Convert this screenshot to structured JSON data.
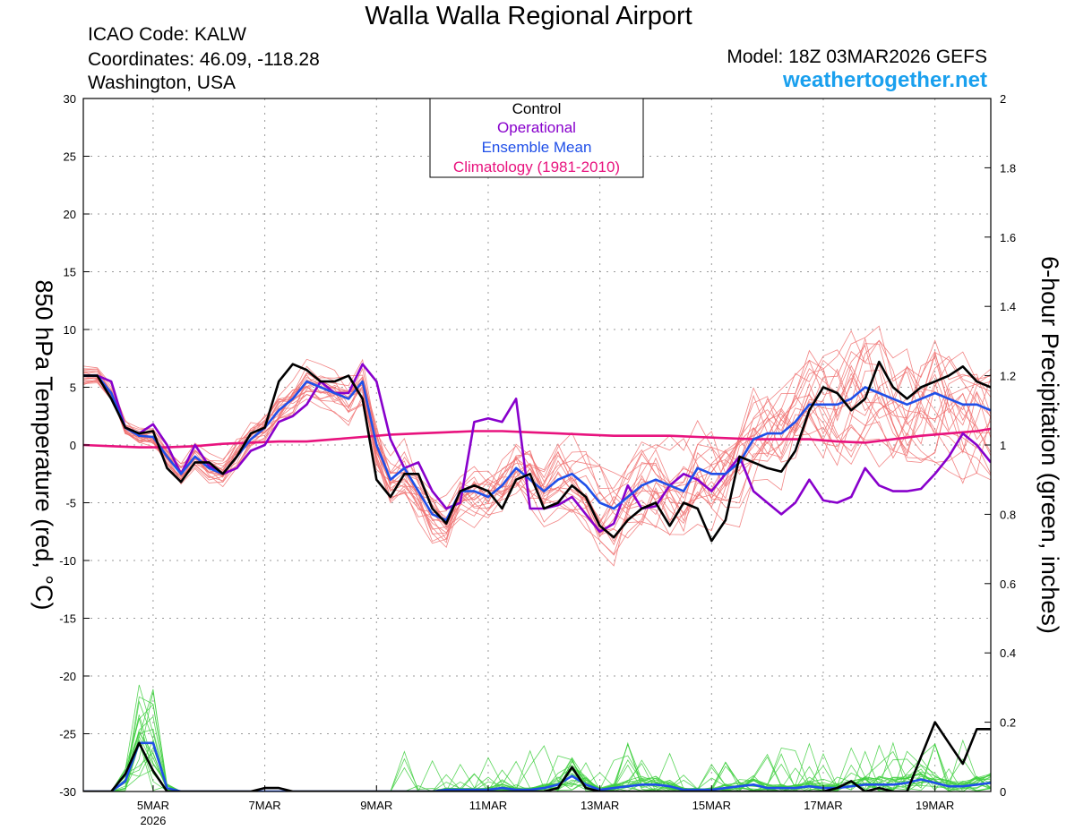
{
  "header": {
    "title": "Walla Walla Regional Airport",
    "icao": "ICAO Code: KALW",
    "coordinates": "Coordinates: 46.09, -118.28",
    "region": "Washington, USA",
    "model": "Model: 18Z 03MAR2026 GEFS",
    "website": "weathertogether.net"
  },
  "colors": {
    "control": "#000000",
    "operational": "#8800cc",
    "ensemble_mean": "#1f4fe8",
    "climatology": "#e8137e",
    "member_temp": "#f07070",
    "member_precip": "#3ecf3e",
    "website": "#1aa0ee"
  },
  "chart_data": {
    "type": "line",
    "x_unit": "days since 18Z 03MAR2026",
    "xlim": [
      0,
      16.25
    ],
    "x_ticks": [
      {
        "x": 1.25,
        "label": "5MAR",
        "sub": "2026"
      },
      {
        "x": 3.25,
        "label": "7MAR"
      },
      {
        "x": 5.25,
        "label": "9MAR"
      },
      {
        "x": 7.25,
        "label": "11MAR"
      },
      {
        "x": 9.25,
        "label": "13MAR"
      },
      {
        "x": 11.25,
        "label": "15MAR"
      },
      {
        "x": 13.25,
        "label": "17MAR"
      },
      {
        "x": 15.25,
        "label": "19MAR"
      }
    ],
    "y_left": {
      "label": "850 hPa Temperature (red, °C)",
      "lim": [
        -30,
        30
      ],
      "ticks": [
        -30,
        -25,
        -20,
        -15,
        -10,
        -5,
        0,
        5,
        10,
        15,
        20,
        25,
        30
      ]
    },
    "y_right": {
      "label": "6-hour Precipitation (green, inches)",
      "lim": [
        0,
        2
      ],
      "ticks": [
        "0",
        "0.2",
        "0.4",
        "0.6",
        "0.8",
        "1",
        "1.2",
        "1.4",
        "1.6",
        "1.8",
        "2"
      ]
    },
    "grid": true,
    "legend": {
      "position": "top-center",
      "entries": [
        "Control",
        "Operational",
        "Ensemble Mean",
        "Climatology (1981-2010)"
      ]
    },
    "series": [
      {
        "name": "Control",
        "axis": "left",
        "key": "control",
        "width": 2.6,
        "x": [
          0,
          0.25,
          0.5,
          0.75,
          1,
          1.25,
          1.5,
          1.75,
          2,
          2.25,
          2.5,
          2.75,
          3,
          3.25,
          3.5,
          3.75,
          4,
          4.25,
          4.5,
          4.75,
          5,
          5.25,
          5.5,
          5.75,
          6,
          6.25,
          6.5,
          6.75,
          7,
          7.25,
          7.5,
          7.75,
          8,
          8.25,
          8.5,
          8.75,
          9,
          9.25,
          9.5,
          9.75,
          10,
          10.25,
          10.5,
          10.75,
          11,
          11.25,
          11.5,
          11.75,
          12,
          12.25,
          12.5,
          12.75,
          13,
          13.25,
          13.5,
          13.75,
          14,
          14.25,
          14.5,
          14.75,
          15,
          15.25,
          15.5,
          15.75,
          16,
          16.25
        ],
        "y": [
          6,
          6,
          4,
          1.5,
          1,
          1.2,
          -2,
          -3.2,
          -1.5,
          -1.5,
          -2.5,
          -1,
          1,
          1.5,
          5.5,
          7,
          6.5,
          5.5,
          5.5,
          6,
          4,
          -3,
          -4.5,
          -2.5,
          -2.5,
          -5.5,
          -6.8,
          -4,
          -3.5,
          -4,
          -5.5,
          -3,
          -2.5,
          -5.5,
          -5,
          -3.5,
          -4.5,
          -7,
          -8,
          -6.5,
          -5.5,
          -5,
          -7,
          -5,
          -5.5,
          -8.3,
          -6.5,
          -1,
          -1.5,
          -2,
          -2.3,
          -0.5,
          3,
          5,
          4.5,
          3,
          4,
          7.2,
          5,
          4,
          5,
          5.5,
          6,
          6.8,
          5.5,
          5
        ]
      },
      {
        "name": "Operational",
        "axis": "left",
        "key": "operational",
        "width": 2.6,
        "x": [
          0,
          0.25,
          0.5,
          0.75,
          1,
          1.25,
          1.5,
          1.75,
          2,
          2.25,
          2.5,
          2.75,
          3,
          3.25,
          3.5,
          3.75,
          4,
          4.25,
          4.5,
          4.75,
          5,
          5.25,
          5.5,
          5.75,
          6,
          6.25,
          6.5,
          6.75,
          7,
          7.25,
          7.5,
          7.75,
          8,
          8.25,
          8.5,
          8.75,
          9,
          9.25,
          9.5,
          9.75,
          10,
          10.25,
          10.5,
          10.75,
          11,
          11.25,
          11.5,
          11.75,
          12,
          12.25,
          12.5,
          12.75,
          13,
          13.25,
          13.5,
          13.75,
          14,
          14.25,
          14.5,
          14.75,
          15,
          15.25,
          15.5,
          15.75,
          16,
          16.25
        ],
        "y": [
          6,
          6,
          5.5,
          1.5,
          1,
          1.8,
          0,
          -2.5,
          0,
          -1.8,
          -2.5,
          -2,
          -0.5,
          0,
          2,
          2.5,
          3.5,
          5.5,
          4.5,
          4.5,
          7,
          5.5,
          0.5,
          -2,
          -1.5,
          -4,
          -5.5,
          -5,
          2,
          2.3,
          2,
          4,
          -5.5,
          -5.5,
          -5.2,
          -4.5,
          -6,
          -7.5,
          -6.8,
          -3.5,
          -5.5,
          -5.3,
          -3.5,
          -2.5,
          -3,
          -4,
          -2.5,
          -1,
          -4,
          -5,
          -6,
          -5,
          -3,
          -4.8,
          -5,
          -4.5,
          -2,
          -3.5,
          -4,
          -4,
          -3.8,
          -2.5,
          -1,
          1,
          0,
          -1.5
        ]
      },
      {
        "name": "Ensemble Mean",
        "axis": "left",
        "key": "ensemble_mean",
        "width": 2.6,
        "x": [
          0,
          0.25,
          0.5,
          0.75,
          1,
          1.25,
          1.5,
          1.75,
          2,
          2.25,
          2.5,
          2.75,
          3,
          3.25,
          3.5,
          3.75,
          4,
          4.25,
          4.5,
          4.75,
          5,
          5.25,
          5.5,
          5.75,
          6,
          6.25,
          6.5,
          6.75,
          7,
          7.25,
          7.5,
          7.75,
          8,
          8.25,
          8.5,
          8.75,
          9,
          9.25,
          9.5,
          9.75,
          10,
          10.25,
          10.5,
          10.75,
          11,
          11.25,
          11.5,
          11.75,
          12,
          12.25,
          12.5,
          12.75,
          13,
          13.25,
          13.5,
          13.75,
          14,
          14.25,
          14.5,
          14.75,
          15,
          15.25,
          15.5,
          15.75,
          16,
          16.25
        ],
        "y": [
          6,
          6,
          4.5,
          1.5,
          0.8,
          0.7,
          -1,
          -2.5,
          -1,
          -2,
          -2.5,
          -1,
          0.5,
          1.5,
          3,
          4,
          5.5,
          5,
          4.5,
          4,
          5.5,
          0,
          -3,
          -2,
          -4,
          -6,
          -6.5,
          -4,
          -4,
          -4.5,
          -3.5,
          -2,
          -3,
          -4,
          -3,
          -2.5,
          -3.5,
          -5,
          -5.5,
          -4.5,
          -3.5,
          -3,
          -3.5,
          -4,
          -2,
          -2.5,
          -2.5,
          -1.5,
          0.5,
          1,
          1,
          2,
          3.5,
          3.5,
          3.5,
          4,
          5,
          4.5,
          4,
          3.5,
          4,
          4.5,
          4,
          3.5,
          3.5,
          3
        ]
      },
      {
        "name": "Climatology (1981-2010)",
        "axis": "left",
        "key": "climatology",
        "width": 2.6,
        "x": [
          0,
          0.5,
          1,
          1.5,
          2,
          2.5,
          3,
          3.5,
          4,
          4.5,
          5,
          5.5,
          6,
          6.5,
          7,
          7.5,
          8,
          8.5,
          9,
          9.5,
          10,
          10.5,
          11,
          11.5,
          12,
          12.5,
          13,
          13.5,
          14,
          14.5,
          15,
          15.5,
          16,
          16.25
        ],
        "y": [
          0,
          -0.1,
          -0.2,
          -0.2,
          -0.1,
          0.1,
          0.2,
          0.3,
          0.3,
          0.5,
          0.7,
          0.9,
          1,
          1.1,
          1.2,
          1.2,
          1.1,
          1,
          0.9,
          0.8,
          0.8,
          0.8,
          0.7,
          0.6,
          0.5,
          0.5,
          0.5,
          0.3,
          0.2,
          0.5,
          0.8,
          1.0,
          1.2,
          1.4
        ]
      },
      {
        "name": "Control precipitation",
        "axis": "right",
        "key": "control",
        "width": 2.6,
        "x": [
          0,
          0.25,
          0.5,
          0.75,
          1,
          1.25,
          1.5,
          1.75,
          2,
          2.25,
          2.5,
          2.75,
          3,
          3.25,
          3.5,
          3.75,
          4,
          4.25,
          4.5,
          4.75,
          5,
          5.25,
          5.5,
          5.75,
          6,
          6.25,
          6.5,
          6.75,
          7,
          7.25,
          7.5,
          7.75,
          8,
          8.25,
          8.5,
          8.75,
          9,
          9.25,
          9.5,
          9.75,
          10,
          10.25,
          10.5,
          10.75,
          11,
          11.25,
          11.5,
          11.75,
          12,
          12.25,
          12.5,
          12.75,
          13,
          13.25,
          13.5,
          13.75,
          14,
          14.25,
          14.5,
          14.75,
          15,
          15.25,
          15.5,
          15.75,
          16,
          16.25
        ],
        "y": [
          0,
          0,
          0,
          0.05,
          0.14,
          0.06,
          0,
          0,
          0,
          0,
          0,
          0,
          0,
          0.01,
          0.01,
          0,
          0,
          0,
          0,
          0,
          0,
          0,
          0,
          0,
          0,
          0,
          0,
          0,
          0,
          0,
          0,
          0,
          0,
          0,
          0.01,
          0.07,
          0.01,
          0,
          0,
          0,
          0,
          0,
          0,
          0,
          0,
          0,
          0,
          0,
          0,
          0,
          0,
          0,
          0,
          0,
          0.01,
          0.03,
          0,
          0.01,
          0,
          0,
          0.1,
          0.2,
          0.14,
          0.08,
          0.18,
          0.18
        ]
      },
      {
        "name": "Ensemble mean precipitation",
        "axis": "right",
        "key": "ensemble_mean",
        "width": 2.6,
        "x": [
          0,
          0.25,
          0.5,
          0.75,
          1,
          1.25,
          1.5,
          1.75,
          2,
          2.25,
          2.5,
          2.75,
          3,
          3.25,
          3.5,
          3.75,
          4,
          4.25,
          4.5,
          4.75,
          5,
          5.25,
          5.5,
          5.75,
          6,
          6.25,
          6.5,
          6.75,
          7,
          7.25,
          7.5,
          7.75,
          8,
          8.25,
          8.5,
          8.75,
          9,
          9.25,
          9.5,
          9.75,
          10,
          10.25,
          10.5,
          10.75,
          11,
          11.25,
          11.5,
          11.75,
          12,
          12.25,
          12.5,
          12.75,
          13,
          13.25,
          13.5,
          13.75,
          14,
          14.25,
          14.5,
          14.75,
          15,
          15.25,
          15.5,
          15.75,
          16,
          16.25
        ],
        "y": [
          0,
          0,
          0,
          0.03,
          0.14,
          0.14,
          0.01,
          0,
          0,
          0,
          0,
          0,
          0,
          0,
          0,
          0,
          0,
          0,
          0,
          0,
          0,
          0,
          0,
          0,
          0,
          0,
          0.005,
          0.005,
          0.005,
          0.005,
          0.01,
          0.005,
          0.005,
          0.01,
          0.02,
          0.045,
          0.02,
          0.005,
          0.01,
          0.015,
          0.02,
          0.02,
          0.015,
          0.005,
          0.005,
          0.005,
          0.01,
          0.015,
          0.02,
          0.01,
          0.01,
          0.01,
          0.015,
          0.01,
          0.01,
          0.015,
          0.02,
          0.02,
          0.02,
          0.025,
          0.035,
          0.025,
          0.015,
          0.015,
          0.02,
          0.025
        ]
      }
    ]
  }
}
